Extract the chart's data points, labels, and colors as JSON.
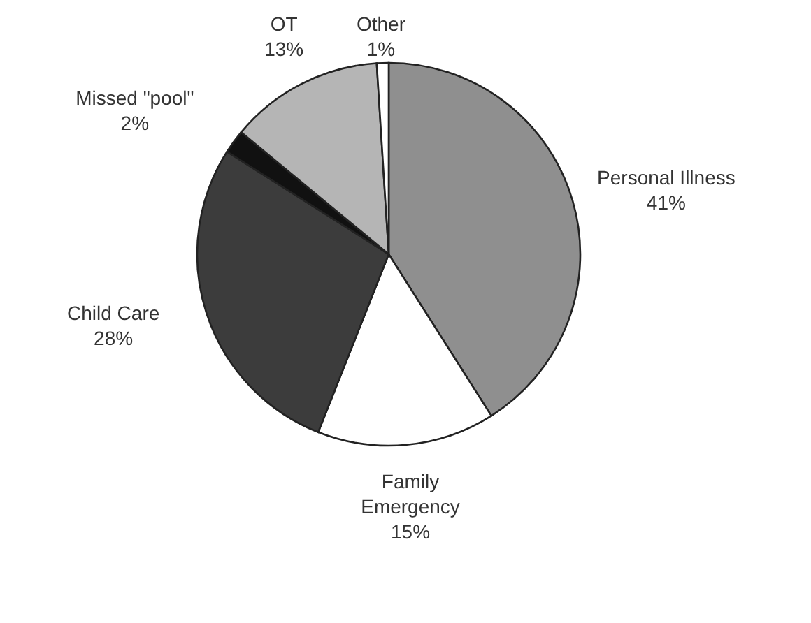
{
  "chart_data": {
    "type": "pie",
    "categories": [
      "Personal Illness",
      "Family Emergency",
      "Child Care",
      "Missed \"pool\"",
      "OT",
      "Other"
    ],
    "values": [
      41,
      15,
      28,
      2,
      13,
      1
    ],
    "value_labels": [
      "41%",
      "15%",
      "28%",
      "2%",
      "13%",
      "1%"
    ],
    "colors": [
      "#8f8f8f",
      "#ffffff",
      "#3c3c3c",
      "#111111",
      "#b5b5b5",
      "#ffffff"
    ]
  }
}
